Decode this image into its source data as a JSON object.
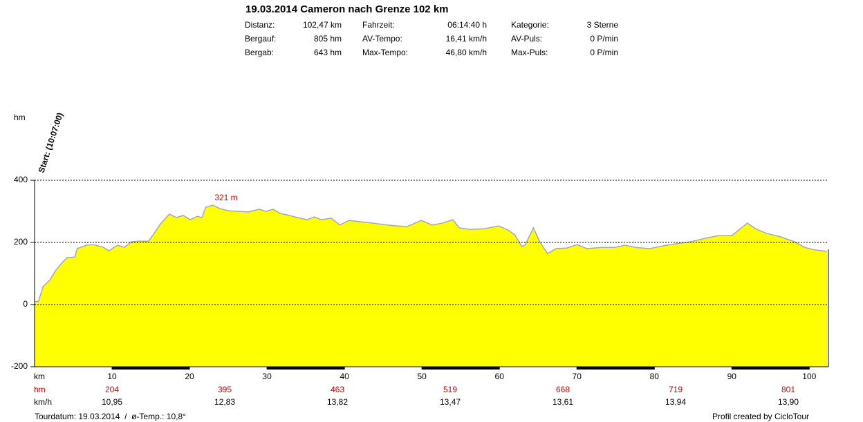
{
  "header": {
    "title": "19.03.2014 Cameron nach Grenze 102 km",
    "stats": [
      {
        "label": "Distanz:",
        "value": "102,47 km"
      },
      {
        "label": "Fahrzeit:",
        "value": "06:14:40 h"
      },
      {
        "label": "Kategorie:",
        "value": "3 Sterne"
      },
      {
        "label": "Bergauf:",
        "value": "805 hm"
      },
      {
        "label": "AV-Tempo:",
        "value": "16,41 km/h"
      },
      {
        "label": "AV-Puls:",
        "value": "0 P/min"
      },
      {
        "label": "Bergab:",
        "value": "643 hm"
      },
      {
        "label": "Max-Tempo:",
        "value": "46,80 km/h"
      },
      {
        "label": "Max-Puls:",
        "value": "0 P/min"
      }
    ]
  },
  "chart_data": {
    "type": "area",
    "y_label": "hm",
    "x_label": "km",
    "start_label": "Start: (10:07:00)",
    "max_label": "321 m",
    "color": "#ffff00",
    "line_color": "#a0a4c8",
    "grid": true,
    "x": [
      0.0,
      0.5,
      1.1,
      2.0,
      2.7,
      3.6,
      4.2,
      5.2,
      5.5,
      6.7,
      7.6,
      8.9,
      9.6,
      10.7,
      11.6,
      12.5,
      13.4,
      14.7,
      15.3,
      16.2,
      17.4,
      18.3,
      19.2,
      20.1,
      21.0,
      21.6,
      22.1,
      23.0,
      23.9,
      25.0,
      26.3,
      27.6,
      29.0,
      29.9,
      30.8,
      31.7,
      32.6,
      33.9,
      35.2,
      36.1,
      37.0,
      38.3,
      39.4,
      40.6,
      41.9,
      43.7,
      45.5,
      46.8,
      48.1,
      49.9,
      51.3,
      52.6,
      54.0,
      54.8,
      56.2,
      58.0,
      59.9,
      61.1,
      62.0,
      62.9,
      63.3,
      64.4,
      65.1,
      66.2,
      67.3,
      68.7,
      70.0,
      71.3,
      73.1,
      74.9,
      76.2,
      77.6,
      79.4,
      81.1,
      82.9,
      84.7,
      86.5,
      88.3,
      90.0,
      90.9,
      92.0,
      93.2,
      94.5,
      96.3,
      98.1,
      99.4,
      100.7,
      102.3
    ],
    "values": [
      10,
      10,
      58,
      80,
      109,
      136,
      151,
      153,
      180,
      191,
      193,
      184,
      173,
      191,
      184,
      202,
      204,
      204,
      224,
      258,
      291,
      280,
      287,
      273,
      284,
      280,
      313,
      320,
      309,
      302,
      300,
      298,
      307,
      300,
      307,
      293,
      289,
      280,
      273,
      282,
      273,
      278,
      256,
      271,
      267,
      262,
      256,
      253,
      251,
      271,
      256,
      262,
      273,
      247,
      242,
      244,
      253,
      240,
      224,
      187,
      191,
      247,
      207,
      164,
      180,
      182,
      193,
      180,
      184,
      184,
      191,
      184,
      180,
      189,
      196,
      202,
      213,
      222,
      222,
      240,
      262,
      242,
      229,
      218,
      202,
      184,
      176,
      171
    ],
    "xlim": [
      0,
      102.47
    ],
    "xticks": [
      10,
      20,
      30,
      40,
      50,
      60,
      70,
      80,
      90,
      100
    ],
    "ylim": [
      -200,
      400
    ],
    "yticks": [
      -200,
      0,
      200,
      400
    ]
  },
  "summary": {
    "hm_label": "hm",
    "hm": [
      "204",
      "395",
      "463",
      "519",
      "668",
      "719",
      "801"
    ],
    "kmh_label": "km/h",
    "kmh": [
      "10,95",
      "12,83",
      "13,82",
      "13,47",
      "13,61",
      "13,94",
      "13,90"
    ]
  },
  "footer": {
    "left": "Tourdatum: 19.03.2014  /  ø-Temp.: 10,8°",
    "right": "Profil created by CicloTour"
  }
}
